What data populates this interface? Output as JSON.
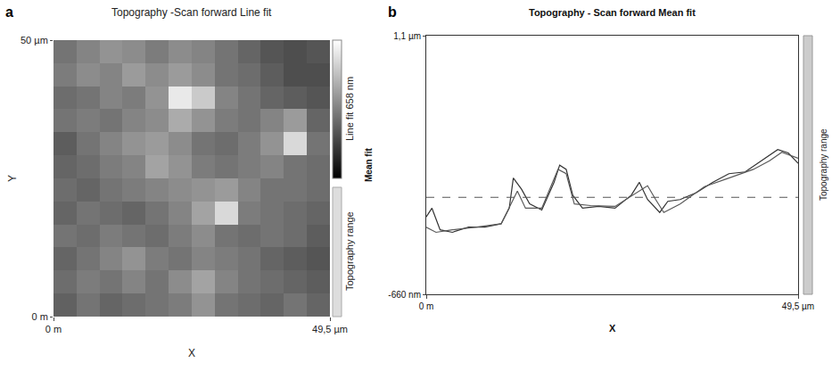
{
  "chart_data": [
    {
      "panel": "a",
      "type": "heatmap",
      "title": "Topography -Scan forward Line fit",
      "x_label": "X",
      "y_label": "Y",
      "x": [
        2.06,
        6.19,
        10.31,
        14.44,
        18.56,
        22.69,
        26.81,
        30.94,
        35.06,
        39.19,
        43.31,
        47.44
      ],
      "y": [
        2.08,
        6.25,
        10.42,
        14.58,
        18.75,
        22.92,
        27.08,
        31.25,
        35.42,
        39.58,
        43.75,
        47.92
      ],
      "z": [
        [
          250,
          300,
          260,
          280,
          300,
          320,
          380,
          300,
          280,
          260,
          300,
          260
        ],
        [
          280,
          320,
          300,
          340,
          300,
          360,
          420,
          340,
          300,
          280,
          260,
          240
        ],
        [
          260,
          300,
          340,
          380,
          320,
          300,
          340,
          320,
          300,
          260,
          240,
          220
        ],
        [
          300,
          280,
          320,
          300,
          280,
          320,
          360,
          300,
          280,
          300,
          280,
          240
        ],
        [
          260,
          300,
          280,
          260,
          300,
          340,
          420,
          560,
          320,
          300,
          280,
          260
        ],
        [
          280,
          260,
          300,
          320,
          340,
          360,
          380,
          400,
          340,
          300,
          300,
          280
        ],
        [
          260,
          280,
          320,
          340,
          420,
          380,
          320,
          300,
          320,
          340,
          300,
          280
        ],
        [
          240,
          300,
          340,
          380,
          400,
          360,
          300,
          280,
          320,
          380,
          560,
          300
        ],
        [
          300,
          320,
          300,
          340,
          360,
          440,
          380,
          320,
          300,
          340,
          400,
          260
        ],
        [
          280,
          300,
          340,
          320,
          380,
          600,
          520,
          340,
          300,
          260,
          240,
          220
        ],
        [
          320,
          360,
          340,
          400,
          360,
          400,
          360,
          300,
          280,
          240,
          200,
          200
        ],
        [
          300,
          340,
          380,
          360,
          320,
          360,
          340,
          300,
          260,
          220,
          200,
          220
        ]
      ],
      "xlim": [
        0,
        49.5
      ],
      "ylim": [
        0,
        50
      ],
      "xticks": [
        {
          "value": 0,
          "label": "0 m"
        },
        {
          "value": 49.5,
          "label": "49,5 µm"
        }
      ],
      "yticks": [
        {
          "value": 0,
          "label": "0 m"
        },
        {
          "value": 50,
          "label": "50 µm"
        }
      ],
      "colorbar": {
        "label": "Line fit 658 nm",
        "range": [
          0,
          658
        ]
      },
      "range_label": "Topography range",
      "grid": false
    },
    {
      "panel": "b",
      "type": "line",
      "title": "Topography - Scan forward Mean fit",
      "x_label": "X",
      "y_label": "Mean fit",
      "range_label": "Topography range",
      "xlim": [
        0,
        49.5
      ],
      "ylim": [
        -660,
        1100
      ],
      "xticks": [
        {
          "value": 0,
          "label": "0 m"
        },
        {
          "value": 49.5,
          "label": "49,5 µm"
        }
      ],
      "yticks": [
        {
          "value": -660,
          "label": "-660 nm"
        },
        {
          "value": 1100,
          "label": "1,1 µm"
        }
      ],
      "mean_line": 0,
      "grid": false,
      "series": [
        {
          "color": "#333333",
          "x": [
            0,
            0.76,
            1.84,
            3.47,
            5.63,
            7.8,
            9.97,
            11.05,
            11.59,
            12.68,
            13.76,
            15.38,
            17.01,
            17.76,
            18.63,
            19.5,
            20.8,
            22.96,
            25.13,
            27.29,
            28.37,
            29.46,
            31.08,
            32.16,
            33.79,
            35.96,
            38.12,
            40.29,
            42.45,
            44.62,
            46.79,
            48.19,
            49.5
          ],
          "values": [
            -133,
            -74,
            -221,
            -238,
            -203,
            -203,
            -180,
            -74,
            131,
            55,
            -45,
            -86,
            102,
            219,
            190,
            14,
            -74,
            -62,
            -74,
            14,
            102,
            -15,
            -103,
            -27,
            -15,
            32,
            102,
            161,
            173,
            249,
            325,
            302,
            231
          ]
        },
        {
          "color": "#5a5a5a",
          "x": [
            0,
            1.3,
            3.47,
            6.71,
            9.97,
            12.13,
            13.21,
            15.38,
            17.54,
            18.63,
            19.71,
            21.88,
            25.13,
            29.46,
            30.54,
            31.62,
            33.79,
            37.04,
            40.29,
            43.54,
            45.7,
            47.33,
            49.5
          ],
          "values": [
            -203,
            -238,
            -221,
            -203,
            -180,
            43,
            -74,
            -74,
            190,
            161,
            -45,
            -56,
            -62,
            79,
            -15,
            -103,
            -45,
            73,
            131,
            190,
            249,
            307,
            266
          ]
        }
      ]
    }
  ]
}
